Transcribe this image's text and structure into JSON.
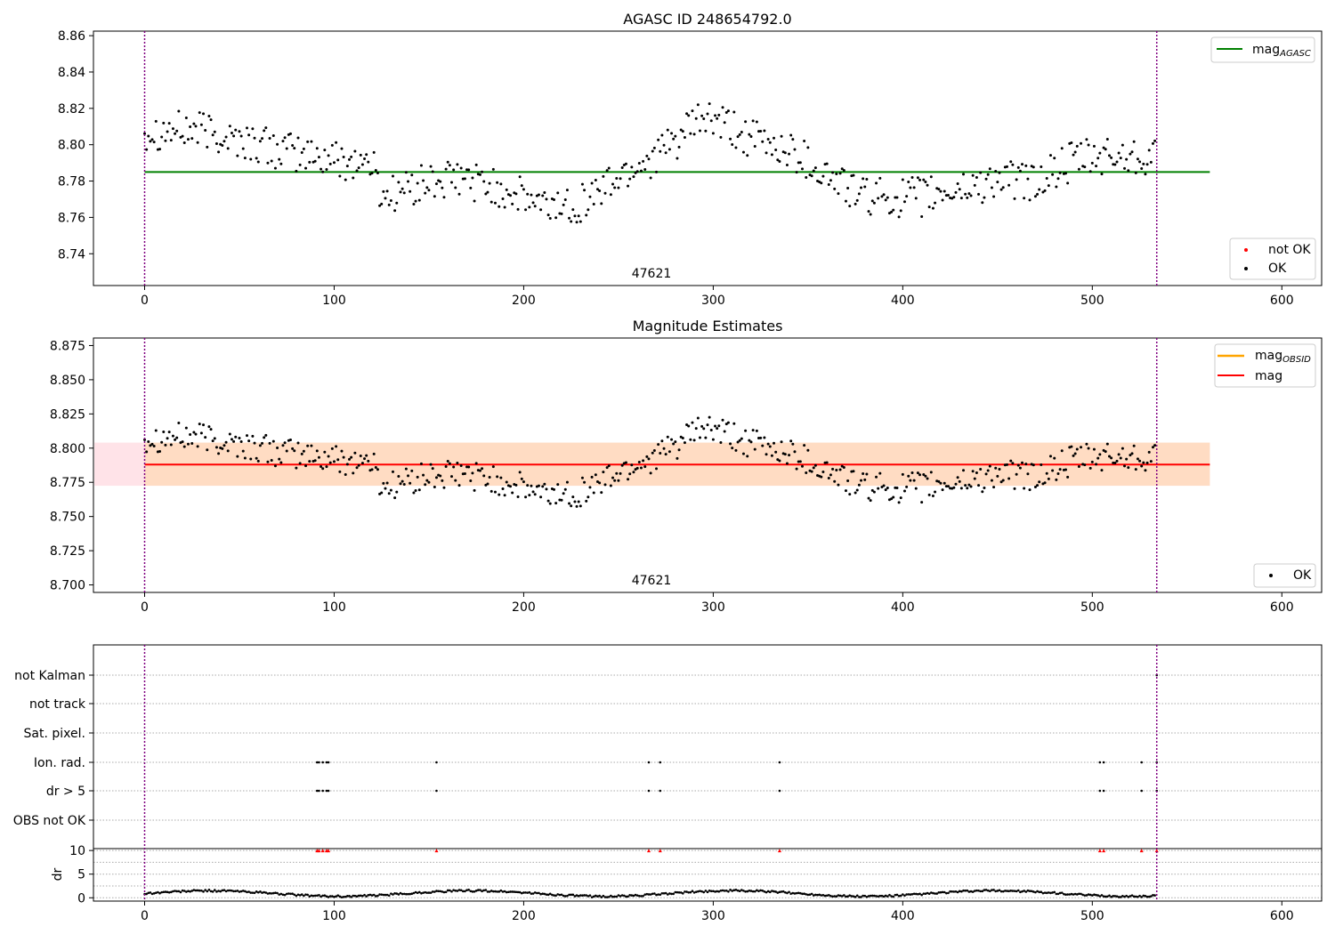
{
  "colors": {
    "agasc": "#008000",
    "obsid": "#FFA500",
    "mag": "#FF0000",
    "ok_point": "#000000",
    "not_ok_point": "#FF0000",
    "band_fill": "#FFC0CB",
    "band_inner": "#FFDAB9",
    "divider": "#800080",
    "flag_grid": "#AAAAAA"
  },
  "chart_data": [
    {
      "type": "scatter",
      "title": "AGASC ID 248654792.0",
      "xlabel": "",
      "ylabel": "",
      "xlim": [
        -27,
        621
      ],
      "ylim": [
        8.7225,
        8.8625
      ],
      "xticks": [
        0,
        100,
        200,
        300,
        400,
        500,
        600
      ],
      "yticks": [
        8.74,
        8.76,
        8.78,
        8.8,
        8.82,
        8.84,
        8.86
      ],
      "ytick_labels": [
        "8.74",
        "8.76",
        "8.78",
        "8.80",
        "8.82",
        "8.84",
        "8.86"
      ],
      "mag_agasc": 8.785,
      "line_x_range": [
        0,
        562
      ],
      "obsid_label": "47621",
      "obsid_label_x": 267,
      "obsid_boundaries": [
        0,
        534
      ],
      "n_points": 534,
      "legend_lines": [
        {
          "name": "mag_AGASC",
          "label_main": "mag",
          "label_sub": "AGASC",
          "color": "#008000"
        }
      ],
      "legend_points": [
        {
          "name": "not OK",
          "color": "#FF0000"
        },
        {
          "name": "OK",
          "color": "#000000"
        }
      ],
      "grid": false,
      "legend_placement": "top-right and bottom-right"
    },
    {
      "type": "scatter",
      "title": "Magnitude Estimates",
      "xlabel": "",
      "ylabel": "",
      "xlim": [
        -27,
        621
      ],
      "ylim": [
        8.6945,
        8.8805
      ],
      "xticks": [
        0,
        100,
        200,
        300,
        400,
        500,
        600
      ],
      "yticks": [
        8.7,
        8.725,
        8.75,
        8.775,
        8.8,
        8.825,
        8.85,
        8.875
      ],
      "ytick_labels": [
        "8.700",
        "8.725",
        "8.750",
        "8.775",
        "8.800",
        "8.825",
        "8.850",
        "8.875"
      ],
      "mag_obsid": 8.788,
      "mag": 8.788,
      "band_outer": [
        8.7725,
        8.804
      ],
      "band_inner_x_range": [
        0,
        534
      ],
      "line_x_range": [
        0,
        562
      ],
      "obsid_label": "47621",
      "obsid_label_x": 267,
      "obsid_boundaries": [
        0,
        534
      ],
      "n_points": 534,
      "legend_lines": [
        {
          "name": "mag_OBSID",
          "label_main": "mag",
          "label_sub": "OBSID",
          "color": "#FFA500"
        },
        {
          "name": "mag",
          "label_main": "mag",
          "label_sub": "",
          "color": "#FF0000"
        }
      ],
      "legend_points": [
        {
          "name": "OK",
          "color": "#000000"
        }
      ],
      "grid": false,
      "legend_placement": "top-right and bottom-right"
    },
    {
      "type": "scatter",
      "title": "",
      "xlabel": "",
      "ylabel": "",
      "xlim": [
        -27,
        621
      ],
      "flag_rows": [
        "not Kalman",
        "not track",
        "Sat. pixel.",
        "Ion. rad.",
        "dr > 5",
        "OBS not OK"
      ],
      "flag_points": {
        "not Kalman": [
          534
        ],
        "not track": [],
        "Sat. pixel.": [],
        "Ion. rad.": [
          91,
          92,
          94,
          96,
          97,
          154,
          266,
          272,
          335,
          504,
          506,
          526,
          534
        ],
        "dr > 5": [
          91,
          92,
          94,
          96,
          97,
          154,
          266,
          272,
          335,
          504,
          506,
          526,
          534
        ],
        "OBS not OK": []
      },
      "grid": true,
      "obsid_boundaries": [
        0,
        534
      ]
    },
    {
      "type": "scatter",
      "title": "",
      "xlabel": "",
      "ylabel": "dr",
      "xlim": [
        -27,
        621
      ],
      "ylim": [
        -0.7,
        10.4
      ],
      "yticks": [
        0,
        5,
        10
      ],
      "ytick_labels": [
        "0",
        "5",
        "10"
      ],
      "xticks": [
        0,
        100,
        200,
        300,
        400,
        500,
        600
      ],
      "clipped_points_at_10": [
        91,
        92,
        94,
        96,
        97,
        154,
        266,
        272,
        335,
        504,
        506,
        526,
        534
      ],
      "n_points": 534,
      "grid": true,
      "obsid_boundaries": [
        0,
        534
      ]
    }
  ]
}
